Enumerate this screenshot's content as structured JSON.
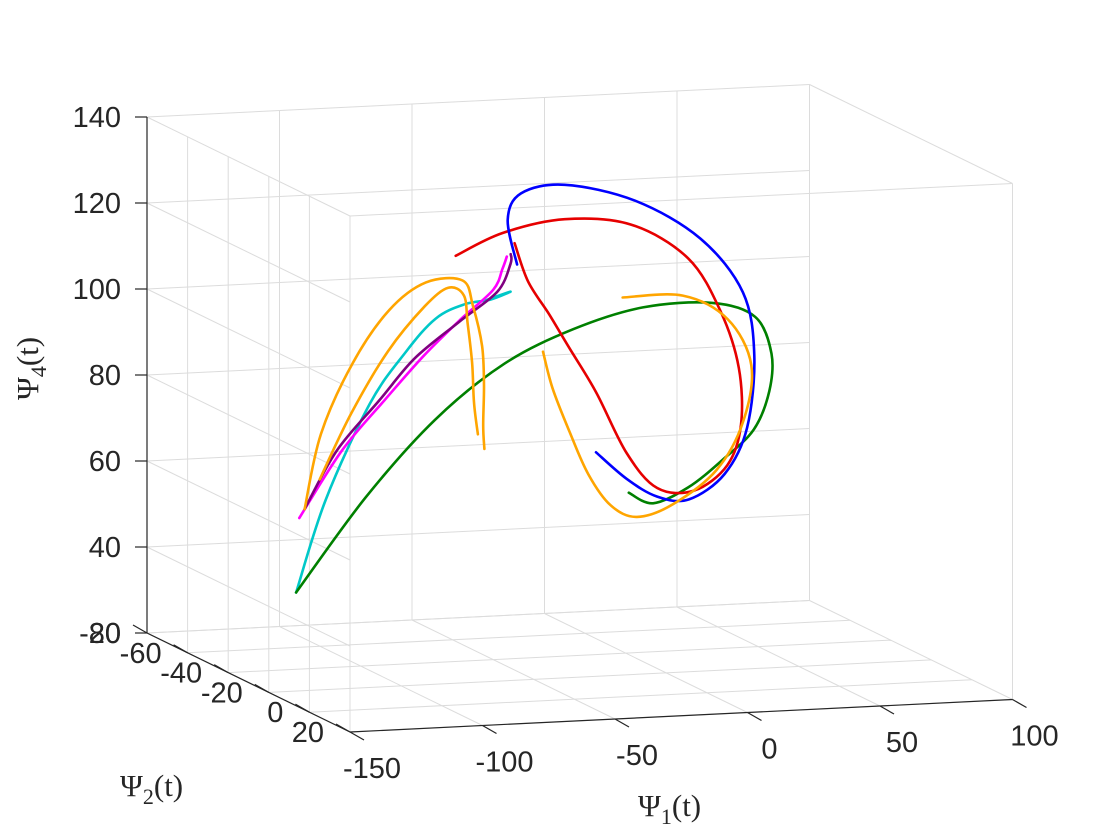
{
  "chart_data": {
    "type": "line3d",
    "xlabel": {
      "base": "Ψ",
      "sub": "1",
      "suffix": "(t)"
    },
    "ylabel": {
      "base": "Ψ",
      "sub": "2",
      "suffix": "(t)"
    },
    "zlabel": {
      "base": "Ψ",
      "sub": "4",
      "suffix": "(t)"
    },
    "xlim": [
      -150,
      100
    ],
    "ylim": [
      -80,
      20
    ],
    "zlim": [
      20,
      140
    ],
    "xticks": [
      "-150",
      "-100",
      "-50",
      "0",
      "50",
      "100"
    ],
    "yticks": [
      "-80",
      "-60",
      "-40",
      "-20",
      "0",
      "20"
    ],
    "zticks": [
      "20",
      "40",
      "60",
      "80",
      "100",
      "120",
      "140"
    ],
    "grid": true,
    "series": [
      {
        "color": "#00c8c8",
        "points": [
          [
            -155,
            0,
            48
          ],
          [
            -140,
            -5,
            68
          ],
          [
            -118,
            -12,
            88
          ],
          [
            -100,
            -18,
            98
          ],
          [
            -84,
            -24,
            104
          ],
          [
            -70,
            -28,
            106
          ],
          [
            -55,
            -35,
            105
          ],
          [
            -40,
            -45,
            104
          ],
          [
            -30,
            -60,
            100
          ],
          [
            -30,
            -70,
            96
          ]
        ]
      },
      {
        "color": "#ff00ff",
        "points": [
          [
            -150,
            -5,
            64
          ],
          [
            -130,
            -10,
            78
          ],
          [
            -110,
            -15,
            88
          ],
          [
            -90,
            -22,
            96
          ],
          [
            -70,
            -30,
            102
          ],
          [
            -50,
            -40,
            106
          ],
          [
            -35,
            -55,
            107
          ],
          [
            -28,
            -62,
            108
          ]
        ]
      },
      {
        "color": "#800080",
        "points": [
          [
            -148,
            -5,
            66
          ],
          [
            -132,
            -10,
            78
          ],
          [
            -112,
            -15,
            88
          ],
          [
            -95,
            -20,
            96
          ],
          [
            -72,
            -28,
            102
          ],
          [
            -50,
            -38,
            106
          ],
          [
            -32,
            -55,
            108
          ],
          [
            -25,
            -64,
            108
          ]
        ]
      },
      {
        "color": "#008000",
        "points": [
          [
            -155,
            0,
            48
          ],
          [
            -125,
            -5,
            68
          ],
          [
            -95,
            -10,
            84
          ],
          [
            -65,
            -15,
            95
          ],
          [
            -35,
            -20,
            101
          ],
          [
            -5,
            -25,
            104
          ],
          [
            25,
            -30,
            103
          ],
          [
            45,
            -35,
            98
          ],
          [
            55,
            -40,
            88
          ],
          [
            58,
            -45,
            78
          ],
          [
            56,
            -50,
            68
          ],
          [
            48,
            -55,
            60
          ],
          [
            35,
            -55,
            54
          ],
          [
            18,
            -50,
            52
          ],
          [
            5,
            -45,
            56
          ]
        ]
      },
      {
        "color": "#e60000",
        "points": [
          [
            -45,
            -65,
            108
          ],
          [
            -25,
            -68,
            112
          ],
          [
            0,
            -70,
            114
          ],
          [
            25,
            -70,
            112
          ],
          [
            45,
            -68,
            104
          ],
          [
            55,
            -65,
            92
          ],
          [
            58,
            -60,
            80
          ],
          [
            55,
            -55,
            68
          ],
          [
            46,
            -50,
            60
          ],
          [
            32,
            -48,
            55
          ],
          [
            18,
            -48,
            56
          ],
          [
            8,
            -50,
            64
          ],
          [
            -2,
            -52,
            78
          ],
          [
            -10,
            -55,
            88
          ],
          [
            -15,
            -58,
            95
          ],
          [
            -20,
            -62,
            102
          ],
          [
            -22,
            -66,
            110
          ]
        ]
      },
      {
        "color": "#0000ff",
        "points": [
          [
            -18,
            -70,
            104
          ],
          [
            -20,
            -72,
            114
          ],
          [
            -15,
            -72,
            120
          ],
          [
            0,
            -70,
            122
          ],
          [
            25,
            -68,
            118
          ],
          [
            45,
            -62,
            110
          ],
          [
            58,
            -58,
            98
          ],
          [
            60,
            -55,
            84
          ],
          [
            55,
            -52,
            68
          ],
          [
            45,
            -50,
            58
          ],
          [
            30,
            -48,
            53
          ],
          [
            18,
            -48,
            54
          ],
          [
            8,
            -50,
            58
          ],
          [
            -2,
            -52,
            64
          ]
        ]
      },
      {
        "color": "#ffa500",
        "points": [
          [
            -148,
            -5,
            66
          ],
          [
            -138,
            -10,
            82
          ],
          [
            -120,
            -18,
            96
          ],
          [
            -100,
            -26,
            106
          ],
          [
            -80,
            -34,
            110
          ],
          [
            -60,
            -42,
            108
          ],
          [
            -50,
            -50,
            100
          ],
          [
            -45,
            -52,
            90
          ],
          [
            -42,
            -55,
            80
          ],
          [
            -40,
            -58,
            70
          ],
          [
            -38,
            -60,
            64
          ]
        ]
      },
      {
        "color": "#ffa500",
        "points": [
          [
            -140,
            -8,
            72
          ],
          [
            -125,
            -12,
            86
          ],
          [
            -105,
            -20,
            98
          ],
          [
            -85,
            -28,
            106
          ],
          [
            -70,
            -36,
            108
          ],
          [
            -58,
            -44,
            104
          ],
          [
            -52,
            -50,
            96
          ],
          [
            -48,
            -53,
            86
          ],
          [
            -45,
            -56,
            76
          ],
          [
            -42,
            -58,
            68
          ]
        ]
      },
      {
        "color": "#ffa500",
        "points": [
          [
            -5,
            -35,
            104
          ],
          [
            20,
            -38,
            103
          ],
          [
            40,
            -42,
            96
          ],
          [
            52,
            -46,
            84
          ],
          [
            52,
            -50,
            70
          ],
          [
            45,
            -54,
            58
          ],
          [
            30,
            -56,
            50
          ],
          [
            15,
            -54,
            48
          ],
          [
            2,
            -50,
            52
          ],
          [
            -8,
            -48,
            60
          ],
          [
            -15,
            -48,
            70
          ],
          [
            -20,
            -50,
            80
          ],
          [
            -22,
            -52,
            88
          ]
        ]
      }
    ]
  }
}
